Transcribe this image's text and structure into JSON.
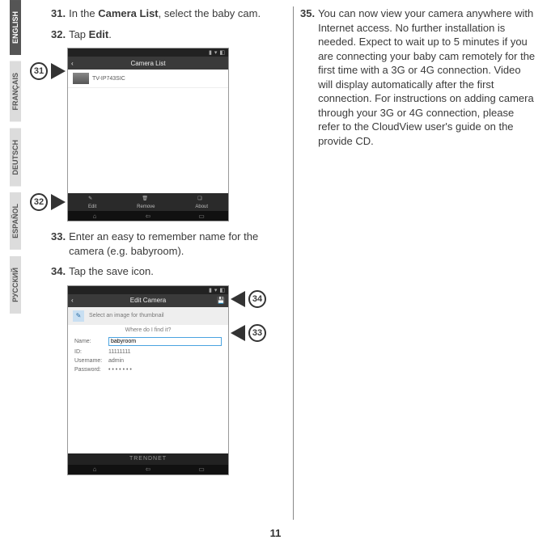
{
  "languages": [
    "ENGLISH",
    "FRANÇAIS",
    "DEUTSCH",
    "ESPAÑOL",
    "РУССКИЙ"
  ],
  "active_language_index": 0,
  "page_number": "11",
  "left_steps": {
    "s31": {
      "num": "31.",
      "text_a": "In the ",
      "bold": "Camera List",
      "text_b": ", select the baby cam."
    },
    "s32": {
      "num": "32.",
      "text_a": "Tap ",
      "bold": "Edit",
      "text_b": "."
    },
    "s33": {
      "num": "33.",
      "text": "Enter an easy to remember name for the camera (e.g. babyroom)."
    },
    "s34": {
      "num": "34.",
      "text": "Tap the save icon."
    }
  },
  "right_steps": {
    "s35": {
      "num": "35.",
      "text": "You can now view your camera anywhere with Internet access. No further installation is needed. Expect to wait up to 5 minutes if you are connecting your baby cam remotely for the first time with a 3G or 4G connection. Video will display automatically after the first connection. For instructions on adding camera through your 3G or 4G connection, please refer to the CloudView user's guide on the provide CD."
    }
  },
  "fig1": {
    "header": "Camera List",
    "item": "TV-IP743SIC",
    "bottom": [
      "Edit",
      "Remove",
      "About"
    ],
    "callouts": {
      "c31": "31",
      "c32": "32"
    }
  },
  "fig2": {
    "header": "Edit Camera",
    "select_text": "Select an image for thumbnail",
    "where": "Where do I find it?",
    "name_label": "Name:",
    "name_value": "babyroom",
    "id_label": "ID:",
    "id_value": "11111111",
    "user_label": "Username:",
    "user_value": "admin",
    "pass_label": "Password:",
    "pass_value": "• • • • • • •",
    "brand": "TRENDNET",
    "callouts": {
      "c33": "33",
      "c34": "34"
    }
  }
}
